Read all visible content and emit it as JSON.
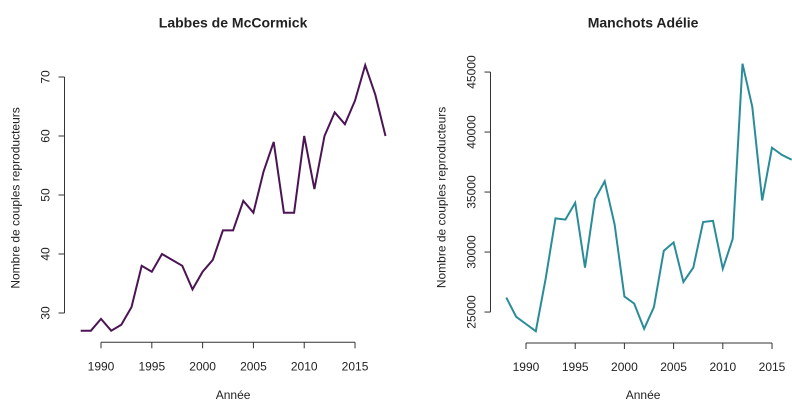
{
  "chart_data": [
    {
      "type": "line",
      "title": "Labbes de McCormick",
      "xlabel": "Année",
      "ylabel": "Nombre de couples reproducteurs",
      "x": [
        1988,
        1989,
        1990,
        1991,
        1992,
        1993,
        1994,
        1995,
        1996,
        1997,
        1998,
        1999,
        2000,
        2001,
        2002,
        2003,
        2004,
        2005,
        2006,
        2007,
        2008,
        2009,
        2010,
        2011,
        2012,
        2013,
        2014,
        2015,
        2016,
        2017,
        2018
      ],
      "values": [
        27,
        27,
        29,
        27,
        28,
        31,
        38,
        37,
        40,
        39,
        38,
        34,
        37,
        39,
        44,
        44,
        49,
        47,
        54,
        59,
        47,
        47,
        60,
        51,
        60,
        64,
        62,
        66,
        72,
        67,
        60
      ],
      "color": "#4b1554",
      "xlim": [
        1986.8,
        2019.2
      ],
      "ylim": [
        25.2,
        73.8
      ],
      "xticks": [
        1990,
        1995,
        2000,
        2005,
        2010,
        2015
      ],
      "yticks": [
        30,
        40,
        50,
        60,
        70
      ]
    },
    {
      "type": "line",
      "title": "Manchots Adélie",
      "xlabel": "Année",
      "ylabel": "Nombre de couples reproducteurs",
      "x": [
        1988,
        1989,
        1990,
        1991,
        1992,
        1993,
        1994,
        1995,
        1996,
        1997,
        1998,
        1999,
        2000,
        2001,
        2002,
        2003,
        2004,
        2005,
        2006,
        2007,
        2008,
        2009,
        2010,
        2011,
        2012,
        2013,
        2014,
        2015,
        2016,
        2017
      ],
      "values": [
        26200,
        24600,
        24000,
        23400,
        27800,
        32800,
        32700,
        34100,
        28700,
        34400,
        35900,
        32300,
        26300,
        25700,
        23600,
        25400,
        30100,
        30800,
        27500,
        28700,
        32500,
        32600,
        28600,
        31100,
        45700,
        42100,
        34300,
        38700,
        38100,
        37700
      ],
      "color": "#2a8c99",
      "xlim": [
        1986.8,
        2017
      ],
      "ylim": [
        22504,
        46596
      ],
      "xticks": [
        1990,
        1995,
        2000,
        2005,
        2010,
        2015
      ],
      "yticks": [
        25000,
        30000,
        35000,
        40000,
        45000
      ]
    }
  ]
}
